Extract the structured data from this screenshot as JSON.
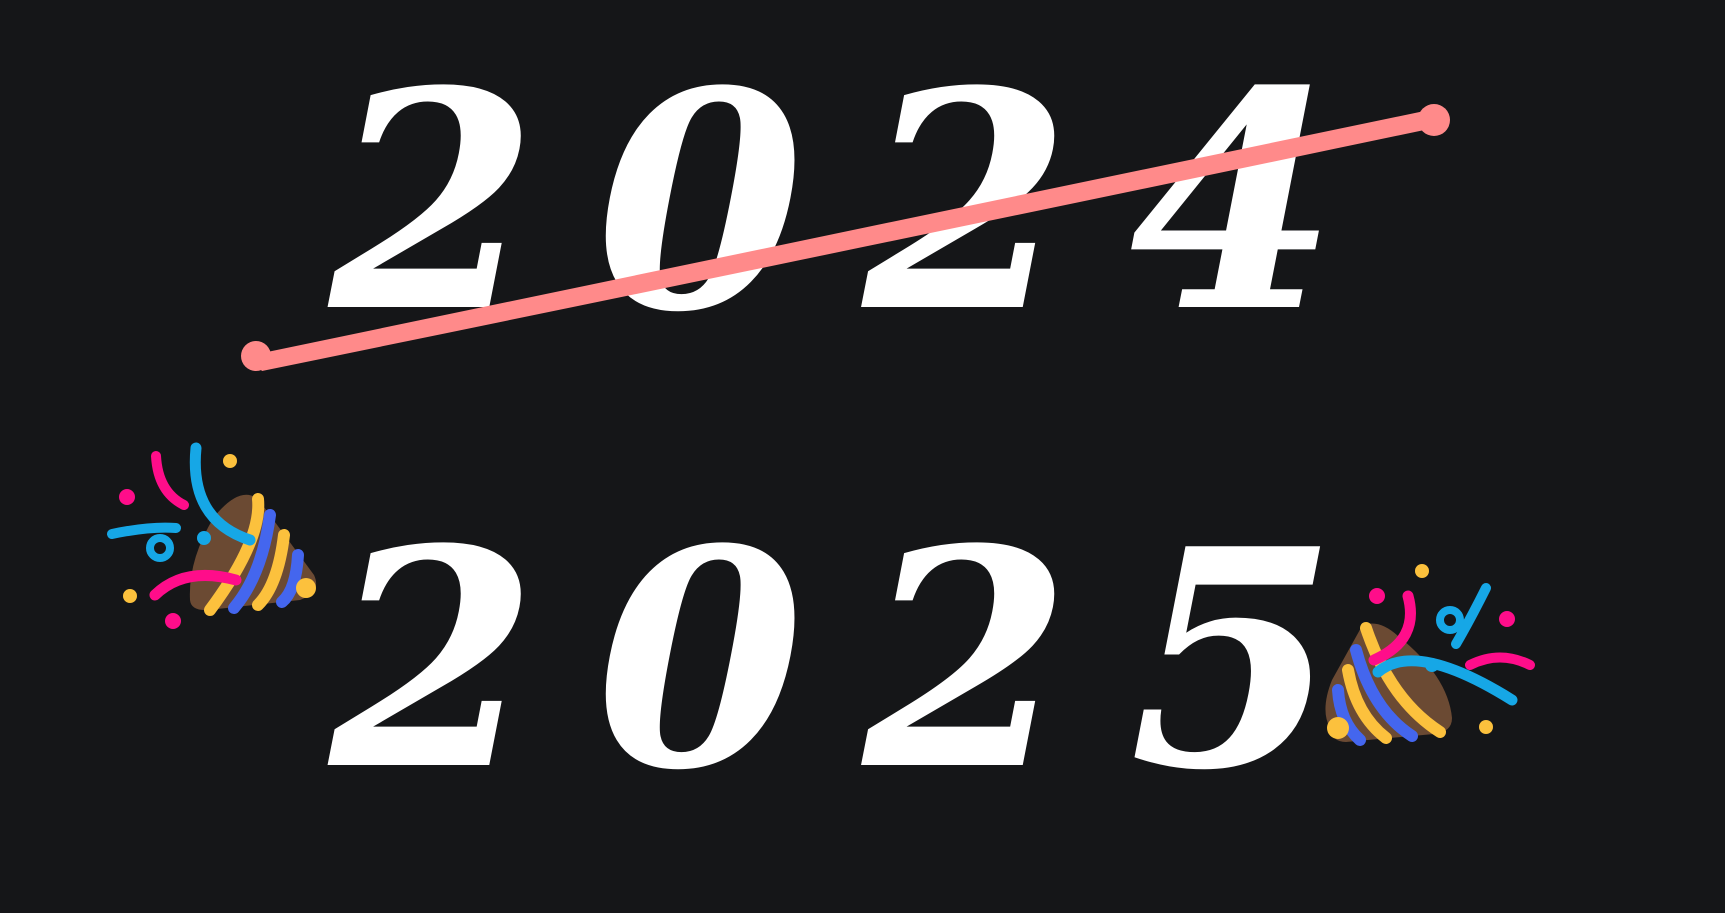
{
  "old_year": "2024",
  "new_year": "2025",
  "icons": {
    "left_popper": "party-popper-icon",
    "right_popper": "party-popper-icon"
  },
  "colors": {
    "background": "#151618",
    "text": "#ffffff",
    "strike": "#ff8a8a",
    "popper_cone": "#6b4a33",
    "popper_stripe_yellow": "#fcc13d",
    "popper_stripe_blue": "#4466ee",
    "confetti_blue": "#16a7e6",
    "confetti_pink": "#ff0d8a",
    "confetti_yellow": "#fcc13d"
  }
}
